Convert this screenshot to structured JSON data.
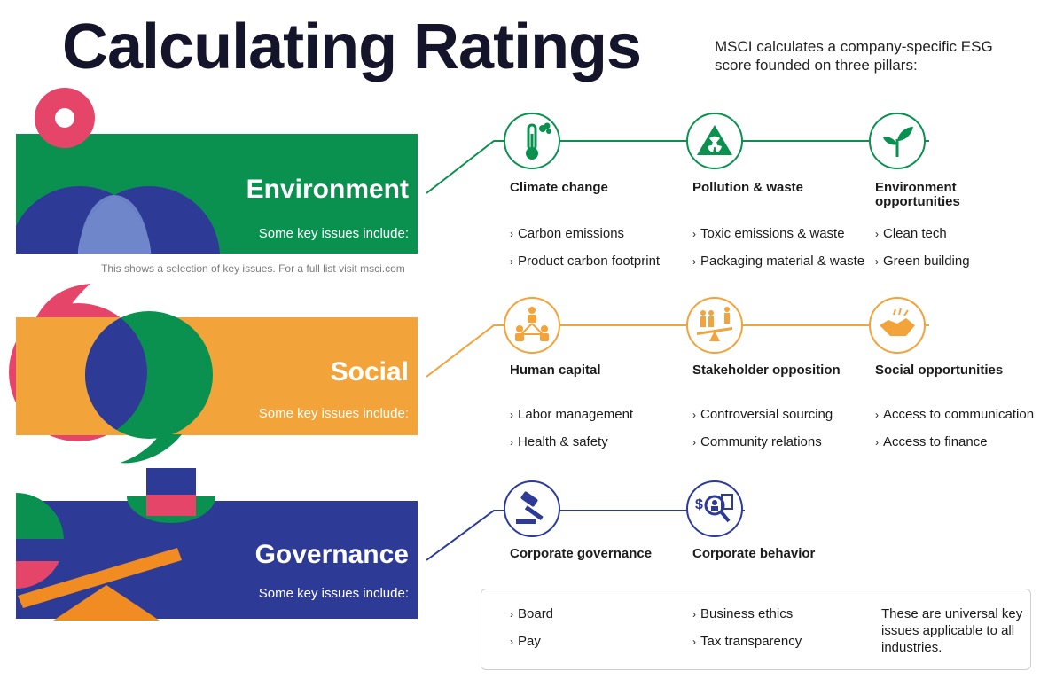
{
  "header": {
    "title": "Calculating Ratings",
    "subtitle": "MSCI calculates a company-specific ESG score founded on three pillars:"
  },
  "note": "This shows a selection of key issues. For a full list visit msci.com",
  "colors": {
    "environment": "#0a9150",
    "social": "#f2a33a",
    "governance": "#2d3b97",
    "accent_pink": "#e6456a",
    "accent_orange": "#f08c21"
  },
  "pillars": {
    "environment": {
      "title": "Environment",
      "subtitle": "Some key issues include:",
      "themes": [
        {
          "icon": "thermometer-icon",
          "name": "Climate change",
          "issues": [
            "Carbon emissions",
            "Product carbon footprint"
          ]
        },
        {
          "icon": "radiation-warning-icon",
          "name": "Pollution & waste",
          "issues": [
            "Toxic emissions & waste",
            "Packaging material & waste"
          ]
        },
        {
          "icon": "sprout-icon",
          "name": "Environment opportunities",
          "issues": [
            "Clean tech",
            "Green building"
          ]
        }
      ]
    },
    "social": {
      "title": "Social",
      "subtitle": "Some key issues include:",
      "themes": [
        {
          "icon": "people-network-icon",
          "name": "Human capital",
          "issues": [
            "Labor management",
            "Health & safety"
          ]
        },
        {
          "icon": "seesaw-people-icon",
          "name": "Stakeholder opposition",
          "issues": [
            "Controversial sourcing",
            "Community relations"
          ]
        },
        {
          "icon": "handshake-icon",
          "name": "Social opportunities",
          "issues": [
            "Access to communication",
            "Access to finance"
          ]
        }
      ]
    },
    "governance": {
      "title": "Governance",
      "subtitle": "Some key issues include:",
      "themes": [
        {
          "icon": "gavel-icon",
          "name": "Corporate governance",
          "issues": [
            "Board",
            "Pay"
          ]
        },
        {
          "icon": "magnifier-dollar-icon",
          "name": "Corporate behavior",
          "issues": [
            "Business ethics",
            "Tax transparency"
          ]
        }
      ],
      "universal_note": "These are universal key issues applicable to all industries."
    }
  }
}
